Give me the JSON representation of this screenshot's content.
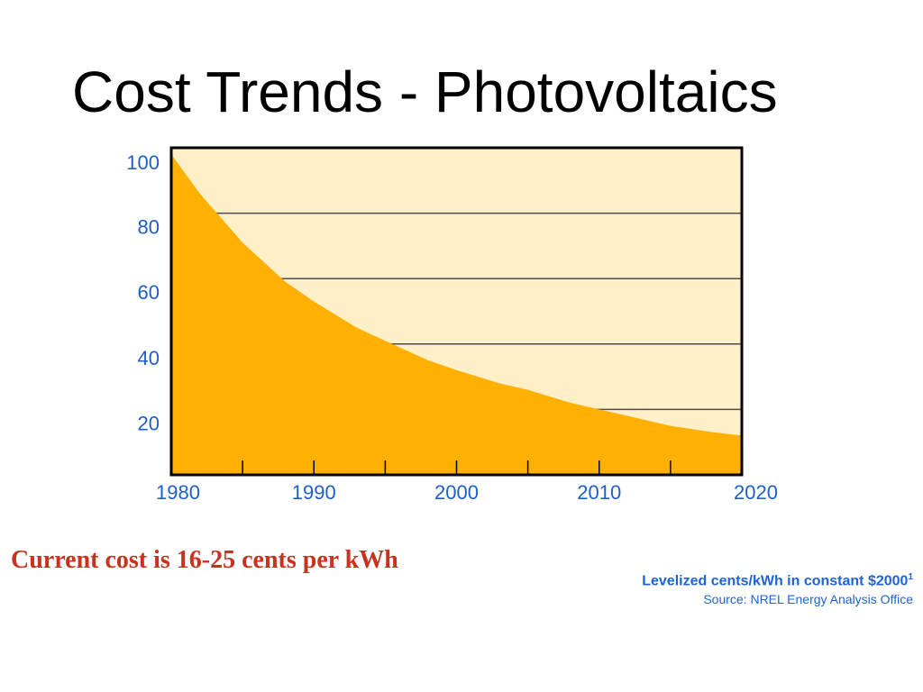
{
  "slide": {
    "title": "Cost Trends - Photovoltaics",
    "callout": "Current cost is 16-25 cents per kWh",
    "footnote": "Levelized cents/kWh in constant $2000",
    "footnote_sup": "1",
    "source": "Source:  NREL Energy Analysis Office"
  },
  "colors": {
    "title": "#000000",
    "axis_labels": "#1e5fc8",
    "callout": "#c8321e",
    "footnote": "#1e64d2",
    "area_fill": "#ffb000",
    "background_fill": "#fff0c8",
    "gridline": "#4d4d4d",
    "frame": "#000000"
  },
  "chart_data": {
    "type": "area",
    "title": "",
    "xlabel": "",
    "ylabel": "",
    "xlim": [
      1980,
      2020
    ],
    "ylim": [
      0,
      100
    ],
    "grid": true,
    "x_ticks": [
      1980,
      1990,
      2000,
      2010,
      2020
    ],
    "y_ticks": [
      20,
      40,
      60,
      80,
      100
    ],
    "series": [
      {
        "x": [
          1980,
          1982,
          1985,
          1988,
          1990,
          1993,
          1995,
          1998,
          2000,
          2003,
          2005,
          2008,
          2010,
          2013,
          2015,
          2018,
          2020
        ],
        "y": [
          98,
          86,
          71,
          59,
          53,
          45,
          41,
          35,
          32,
          28,
          26,
          22,
          20,
          17,
          15,
          13,
          12
        ]
      }
    ]
  }
}
